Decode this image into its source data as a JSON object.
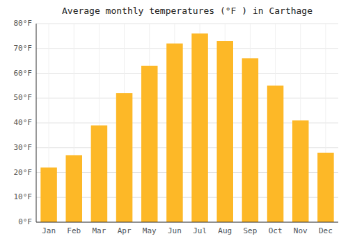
{
  "chart_data": {
    "type": "bar",
    "title": "Average monthly temperatures (°F ) in Carthage",
    "categories": [
      "Jan",
      "Feb",
      "Mar",
      "Apr",
      "May",
      "Jun",
      "Jul",
      "Aug",
      "Sep",
      "Oct",
      "Nov",
      "Dec"
    ],
    "values": [
      22,
      27,
      39,
      52,
      63,
      72,
      76,
      73,
      66,
      55,
      41,
      28
    ],
    "color": "#FDB827",
    "ylim": [
      0,
      80
    ],
    "yticks": [
      {
        "value": 0,
        "label": "0°F"
      },
      {
        "value": 10,
        "label": "10°F"
      },
      {
        "value": 20,
        "label": "20°F"
      },
      {
        "value": 30,
        "label": "30°F"
      },
      {
        "value": 40,
        "label": "40°F"
      },
      {
        "value": 50,
        "label": "50°F"
      },
      {
        "value": 60,
        "label": "60°F"
      },
      {
        "value": 70,
        "label": "70°F"
      },
      {
        "value": 80,
        "label": "80°F"
      }
    ],
    "grid": true
  }
}
